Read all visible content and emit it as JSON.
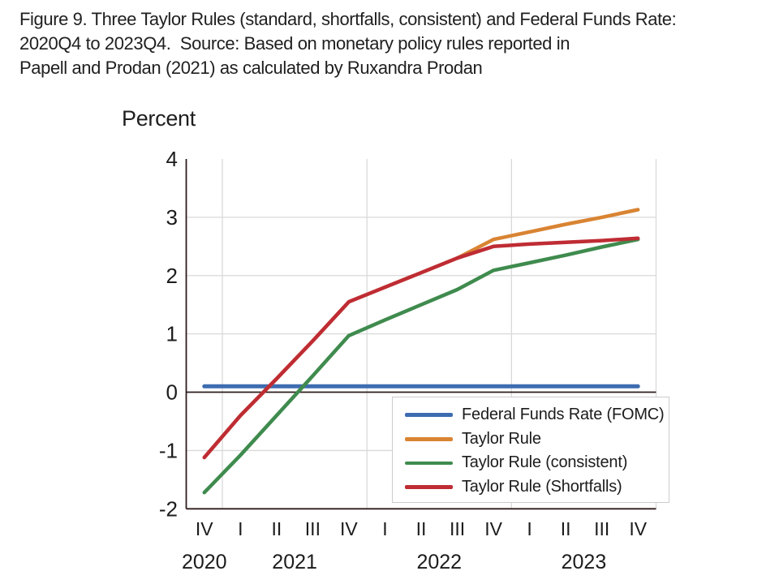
{
  "title": {
    "lines": [
      "Figure 9. Three Taylor Rules (standard, shortfalls, consistent) and Federal Funds Rate:",
      "2020Q4 to 2023Q4.  Source: Based on monetary policy rules reported in",
      "Papell and Prodan (2021) as calculated by Ruxandra Prodan"
    ]
  },
  "chart_data": {
    "type": "line",
    "ylabel": "Percent",
    "xlabel": "",
    "ylim": [
      -2,
      4
    ],
    "yticks": [
      4,
      3,
      2,
      1,
      0,
      -1,
      -2
    ],
    "x_quarter_labels": [
      "IV",
      "I",
      "II",
      "III",
      "IV",
      "I",
      "II",
      "III",
      "IV",
      "I",
      "II",
      "III",
      "IV"
    ],
    "x_year_groups": [
      {
        "label": "2020",
        "count": 1
      },
      {
        "label": "2021",
        "count": 4
      },
      {
        "label": "2022",
        "count": 4
      },
      {
        "label": "2023",
        "count": 4
      }
    ],
    "grid": {
      "horizontal_at": [
        3,
        2,
        1,
        -1
      ],
      "vertical": "year-boundaries",
      "color": "#d9d9d9"
    },
    "axis_color": "#2e1b1b",
    "text_color": "#1c1c1c",
    "legend_position": "inside-bottom-right",
    "series": [
      {
        "name": "Federal Funds Rate (FOMC)",
        "color": "#3e6cb0",
        "width": 5,
        "values": [
          0.1,
          0.1,
          0.1,
          0.1,
          0.1,
          0.1,
          0.1,
          0.1,
          0.1,
          0.1,
          0.1,
          0.1,
          0.1
        ]
      },
      {
        "name": "Taylor Rule",
        "color": "#d98433",
        "width": 4.5,
        "values": [
          -1.12,
          -0.4,
          0.23,
          0.88,
          1.55,
          1.8,
          2.05,
          2.3,
          2.62,
          2.75,
          2.88,
          3.0,
          3.13
        ]
      },
      {
        "name": "Taylor Rule (consistent)",
        "color": "#3f8b4e",
        "width": 4.5,
        "values": [
          -1.72,
          -1.08,
          -0.4,
          0.28,
          0.97,
          1.24,
          1.5,
          1.76,
          2.09,
          2.22,
          2.35,
          2.49,
          2.62
        ]
      },
      {
        "name": "Taylor Rule (Shortfalls)",
        "color": "#bf2c34",
        "width": 4.5,
        "values": [
          -1.12,
          -0.4,
          0.23,
          0.88,
          1.55,
          1.8,
          2.05,
          2.3,
          2.5,
          2.54,
          2.57,
          2.6,
          2.64
        ]
      }
    ]
  }
}
